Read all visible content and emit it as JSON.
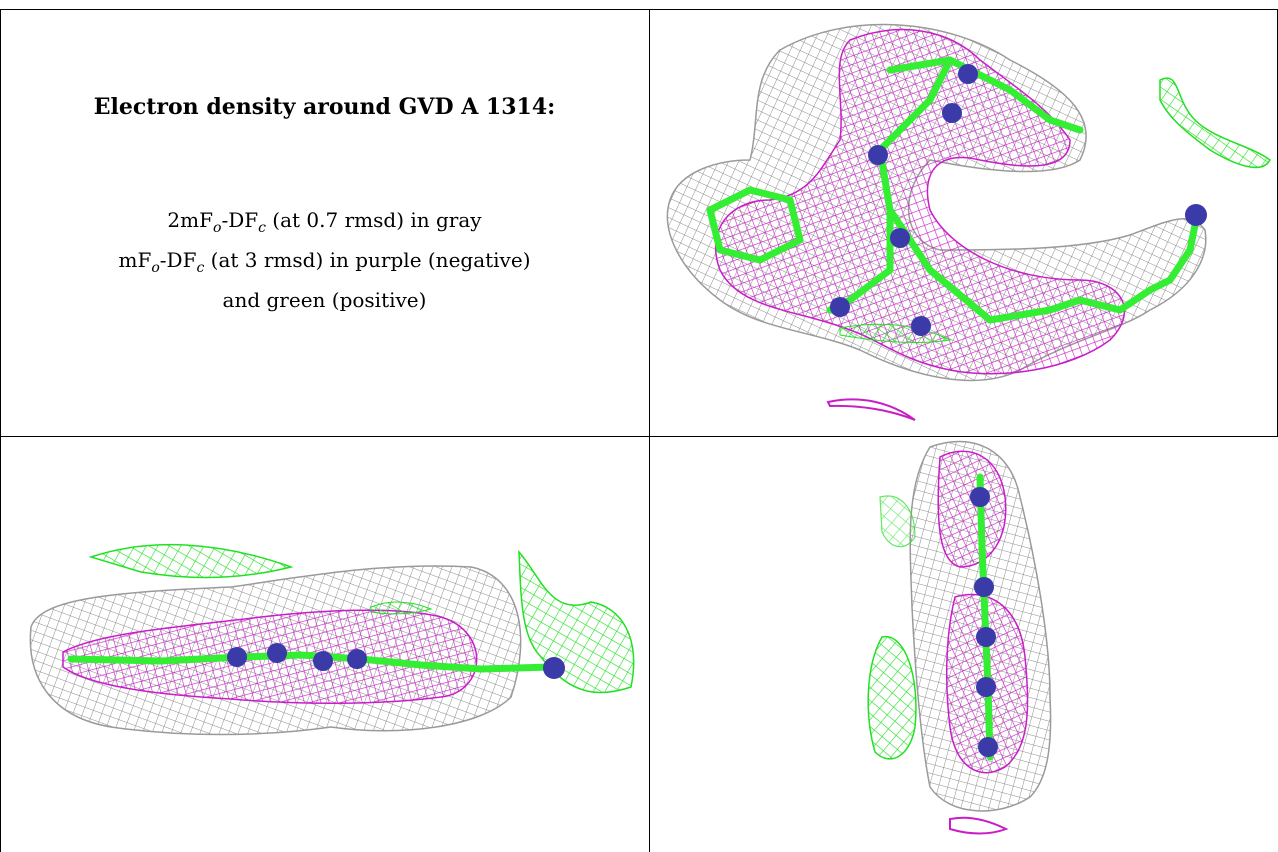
{
  "caption": {
    "title": "Electron density around GVD A 1314:",
    "line1": {
      "a": "2mF",
      "a_sub": "o",
      "b": "-DF",
      "b_sub": "c",
      "rest": " (at 0.7 rmsd) in gray"
    },
    "line2": {
      "a": "mF",
      "a_sub": "o",
      "b": "-DF",
      "b_sub": "c",
      "rest": " (at 3 rmsd) in purple (negative)"
    },
    "line3": "and green (positive)"
  },
  "colors": {
    "mesh_gray": "#8c8c8c",
    "mesh_purple": "#c81ec8",
    "mesh_green": "#22e022",
    "stick_green": "#33ee33",
    "atom_blue": "#3a3aa8"
  },
  "panels": [
    {
      "name": "view-top-right",
      "content": "electron-density-mesh"
    },
    {
      "name": "view-bottom-left",
      "content": "electron-density-mesh"
    },
    {
      "name": "view-bottom-right",
      "content": "electron-density-mesh"
    }
  ]
}
